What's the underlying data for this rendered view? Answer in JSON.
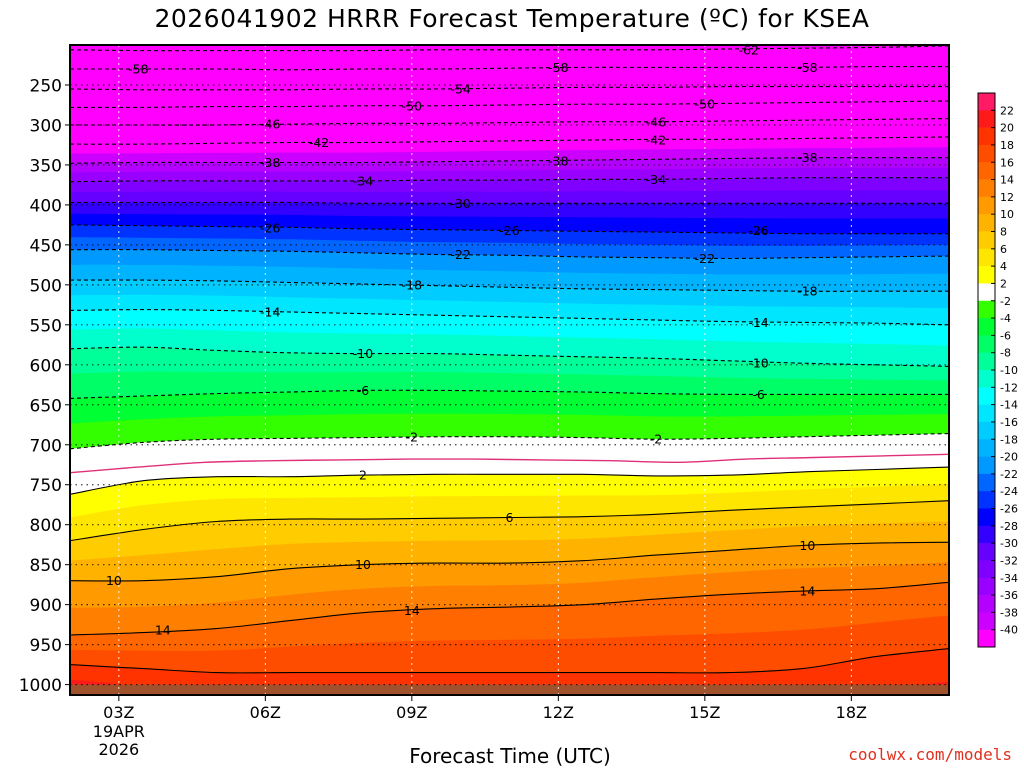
{
  "chart_data": {
    "type": "heatmap",
    "title": "2026041902 HRRR Forecast Temperature (ºC) for KSEA",
    "xlabel": "Forecast Time (UTC)",
    "ylabel": "",
    "x_ticks": [
      "03Z",
      "06Z",
      "09Z",
      "12Z",
      "15Z",
      "18Z"
    ],
    "x_date_label": [
      "19APR",
      "2026"
    ],
    "x_range_hours": [
      2,
      20
    ],
    "y_axis": {
      "ticks": [
        250,
        300,
        350,
        400,
        450,
        500,
        550,
        600,
        650,
        700,
        750,
        800,
        850,
        900,
        950,
        1000
      ],
      "range": [
        200,
        1013
      ],
      "scale": "linear-inverted"
    },
    "colorbar": {
      "labels": [
        22,
        20,
        18,
        16,
        14,
        12,
        10,
        8,
        6,
        4,
        2,
        -2,
        -4,
        -6,
        -8,
        -10,
        -12,
        -14,
        -16,
        -18,
        -20,
        -22,
        -24,
        -26,
        -28,
        -30,
        -32,
        -34,
        -36,
        -38,
        -40
      ],
      "bands": [
        {
          "lo": 22,
          "hi": 24,
          "color": "#ff1a66"
        },
        {
          "lo": 20,
          "hi": 22,
          "color": "#ff1a1a"
        },
        {
          "lo": 18,
          "hi": 20,
          "color": "#ff3300"
        },
        {
          "lo": 16,
          "hi": 18,
          "color": "#ff4d00"
        },
        {
          "lo": 14,
          "hi": 16,
          "color": "#ff6600"
        },
        {
          "lo": 12,
          "hi": 14,
          "color": "#ff8000"
        },
        {
          "lo": 10,
          "hi": 12,
          "color": "#ff9a00"
        },
        {
          "lo": 8,
          "hi": 10,
          "color": "#ffb300"
        },
        {
          "lo": 6,
          "hi": 8,
          "color": "#ffcc00"
        },
        {
          "lo": 4,
          "hi": 6,
          "color": "#ffe600"
        },
        {
          "lo": 2,
          "hi": 4,
          "color": "#ffff00"
        },
        {
          "lo": -2,
          "hi": 2,
          "color": "#ffffff"
        },
        {
          "lo": -4,
          "hi": -2,
          "color": "#33ff00"
        },
        {
          "lo": -6,
          "hi": -4,
          "color": "#00ff33"
        },
        {
          "lo": -8,
          "hi": -6,
          "color": "#00ff66"
        },
        {
          "lo": -10,
          "hi": -8,
          "color": "#00ff99"
        },
        {
          "lo": -12,
          "hi": -10,
          "color": "#00ffcc"
        },
        {
          "lo": -14,
          "hi": -12,
          "color": "#00ffff"
        },
        {
          "lo": -16,
          "hi": -14,
          "color": "#00e6ff"
        },
        {
          "lo": -18,
          "hi": -16,
          "color": "#00ccff"
        },
        {
          "lo": -20,
          "hi": -18,
          "color": "#00b3ff"
        },
        {
          "lo": -22,
          "hi": -20,
          "color": "#0099ff"
        },
        {
          "lo": -24,
          "hi": -22,
          "color": "#0066ff"
        },
        {
          "lo": -26,
          "hi": -24,
          "color": "#0033ff"
        },
        {
          "lo": -28,
          "hi": -26,
          "color": "#0000ff"
        },
        {
          "lo": -30,
          "hi": -28,
          "color": "#3300ff"
        },
        {
          "lo": -32,
          "hi": -30,
          "color": "#6600ff"
        },
        {
          "lo": -34,
          "hi": -32,
          "color": "#8000ff"
        },
        {
          "lo": -36,
          "hi": -34,
          "color": "#9900ff"
        },
        {
          "lo": -38,
          "hi": -36,
          "color": "#b300ff"
        },
        {
          "lo": -40,
          "hi": -38,
          "color": "#cc00ff"
        },
        {
          "lo": -99,
          "hi": -40,
          "color": "#ff00ff"
        }
      ]
    },
    "ground_color": "#a0522d",
    "isotherm_color": "#000000",
    "freezing_line_color": "#e0307a",
    "freezing_line_pressure": [
      735,
      728,
      722,
      720,
      719,
      718,
      718,
      719,
      720,
      722,
      718,
      716,
      714,
      712
    ],
    "profile_x_hours": [
      2,
      3.5,
      5,
      6.5,
      8,
      9.5,
      11,
      12.5,
      14,
      15.5,
      17,
      18.5,
      20
    ],
    "profile": [
      {
        "t": 18,
        "p": [
          975,
          980,
          985,
          985,
          985,
          985,
          985,
          985,
          985,
          985,
          980,
          965,
          955
        ]
      },
      {
        "t": 14,
        "p": [
          938,
          935,
          930,
          920,
          910,
          905,
          903,
          900,
          893,
          887,
          883,
          880,
          872
        ]
      },
      {
        "t": 10,
        "p": [
          870,
          870,
          865,
          855,
          850,
          848,
          848,
          845,
          838,
          832,
          826,
          823,
          822
        ]
      },
      {
        "t": 6,
        "p": [
          820,
          806,
          796,
          793,
          793,
          792,
          791,
          790,
          787,
          782,
          778,
          774,
          770
        ]
      },
      {
        "t": 2,
        "p": [
          762,
          745,
          740,
          740,
          738,
          737,
          737,
          737,
          739,
          738,
          734,
          731,
          728
        ]
      },
      {
        "t": -2,
        "p": [
          705,
          697,
          693,
          692,
          691,
          690,
          690,
          691,
          693,
          692,
          690,
          688,
          686
        ]
      },
      {
        "t": -6,
        "p": [
          642,
          639,
          636,
          634,
          632,
          632,
          633,
          634,
          636,
          637,
          637,
          637,
          637
        ]
      },
      {
        "t": -10,
        "p": [
          580,
          578,
          582,
          585,
          586,
          586,
          588,
          590,
          592,
          595,
          598,
          600,
          602
        ]
      },
      {
        "t": -14,
        "p": [
          532,
          531,
          532,
          534,
          536,
          538,
          540,
          542,
          544,
          546,
          547,
          548,
          550
        ]
      },
      {
        "t": -18,
        "p": [
          494,
          494,
          495,
          497,
          499,
          501,
          503,
          505,
          506,
          507,
          508,
          508,
          508
        ]
      },
      {
        "t": -22,
        "p": [
          456,
          456,
          457,
          458,
          460,
          462,
          463,
          465,
          466,
          467,
          466,
          465,
          464
        ]
      },
      {
        "t": -26,
        "p": [
          425,
          426,
          427,
          428,
          430,
          431,
          432,
          433,
          434,
          435,
          436,
          436,
          436
        ]
      },
      {
        "t": -30,
        "p": [
          397,
          397,
          397,
          397,
          398,
          398,
          398,
          398,
          398,
          398,
          398,
          398,
          398
        ]
      },
      {
        "t": -34,
        "p": [
          371,
          370,
          370,
          370,
          370,
          369,
          369,
          368,
          368,
          367,
          366,
          366,
          366
        ]
      },
      {
        "t": -38,
        "p": [
          348,
          347,
          347,
          347,
          347,
          346,
          345,
          344,
          343,
          342,
          341,
          341,
          341
        ]
      },
      {
        "t": -42,
        "p": [
          324,
          324,
          323,
          322,
          322,
          321,
          320,
          319,
          318,
          318,
          317,
          316,
          315
        ]
      },
      {
        "t": -46,
        "p": [
          300,
          300,
          300,
          299,
          298,
          298,
          297,
          296,
          296,
          295,
          294,
          293,
          292
        ]
      },
      {
        "t": -50,
        "p": [
          278,
          278,
          277,
          277,
          276,
          276,
          275,
          274,
          274,
          273,
          272,
          271,
          270
        ]
      },
      {
        "t": -54,
        "p": [
          255,
          256,
          256,
          256,
          255,
          255,
          254,
          253,
          253,
          252,
          252,
          252,
          252
        ]
      },
      {
        "t": -58,
        "p": [
          230,
          230,
          230,
          231,
          230,
          230,
          229,
          228,
          228,
          228,
          228,
          227,
          227
        ]
      },
      {
        "t": -62,
        "p": [
          206,
          207,
          207,
          207,
          207,
          206,
          206,
          206,
          206,
          205,
          204,
          203,
          201
        ]
      }
    ],
    "contour_labels": [
      {
        "text": "-62",
        "x": 15.9,
        "p": 206
      },
      {
        "text": "-58",
        "x": 3.4,
        "p": 230
      },
      {
        "text": "-58",
        "x": 12.0,
        "p": 228
      },
      {
        "text": "-58",
        "x": 17.1,
        "p": 228
      },
      {
        "text": "-54",
        "x": 10.0,
        "p": 255
      },
      {
        "text": "-50",
        "x": 9.0,
        "p": 276
      },
      {
        "text": "-50",
        "x": 15.0,
        "p": 274
      },
      {
        "text": "-46",
        "x": 6.1,
        "p": 299
      },
      {
        "text": "-46",
        "x": 14.0,
        "p": 296
      },
      {
        "text": "-42",
        "x": 7.1,
        "p": 322
      },
      {
        "text": "-42",
        "x": 14.0,
        "p": 319
      },
      {
        "text": "-38",
        "x": 6.1,
        "p": 347
      },
      {
        "text": "-38",
        "x": 12.0,
        "p": 345
      },
      {
        "text": "-38",
        "x": 17.1,
        "p": 341
      },
      {
        "text": "-34",
        "x": 8.0,
        "p": 370
      },
      {
        "text": "-34",
        "x": 14.0,
        "p": 368
      },
      {
        "text": "-30",
        "x": 10.0,
        "p": 398
      },
      {
        "text": "-26",
        "x": 6.1,
        "p": 429
      },
      {
        "text": "-26",
        "x": 11.0,
        "p": 432
      },
      {
        "text": "-26",
        "x": 16.1,
        "p": 432
      },
      {
        "text": "-22",
        "x": 10.0,
        "p": 462
      },
      {
        "text": "-22",
        "x": 15.0,
        "p": 467
      },
      {
        "text": "-18",
        "x": 9.0,
        "p": 500
      },
      {
        "text": "-18",
        "x": 17.1,
        "p": 508
      },
      {
        "text": "-14",
        "x": 6.1,
        "p": 534
      },
      {
        "text": "-14",
        "x": 16.1,
        "p": 547
      },
      {
        "text": "-10",
        "x": 8.0,
        "p": 586
      },
      {
        "text": "-10",
        "x": 16.1,
        "p": 598
      },
      {
        "text": "-6",
        "x": 8.0,
        "p": 632
      },
      {
        "text": "-6",
        "x": 16.1,
        "p": 637
      },
      {
        "text": "-2",
        "x": 9.0,
        "p": 690
      },
      {
        "text": "-2",
        "x": 14.0,
        "p": 693
      },
      {
        "text": "2",
        "x": 8.0,
        "p": 738
      },
      {
        "text": "6",
        "x": 11.0,
        "p": 791
      },
      {
        "text": "10",
        "x": 2.9,
        "p": 870
      },
      {
        "text": "10",
        "x": 8.0,
        "p": 850
      },
      {
        "text": "10",
        "x": 17.1,
        "p": 826
      },
      {
        "text": "14",
        "x": 3.9,
        "p": 932
      },
      {
        "text": "14",
        "x": 9.0,
        "p": 907
      },
      {
        "text": "14",
        "x": 17.1,
        "p": 883
      }
    ]
  },
  "credit": "coolwx.com/models"
}
